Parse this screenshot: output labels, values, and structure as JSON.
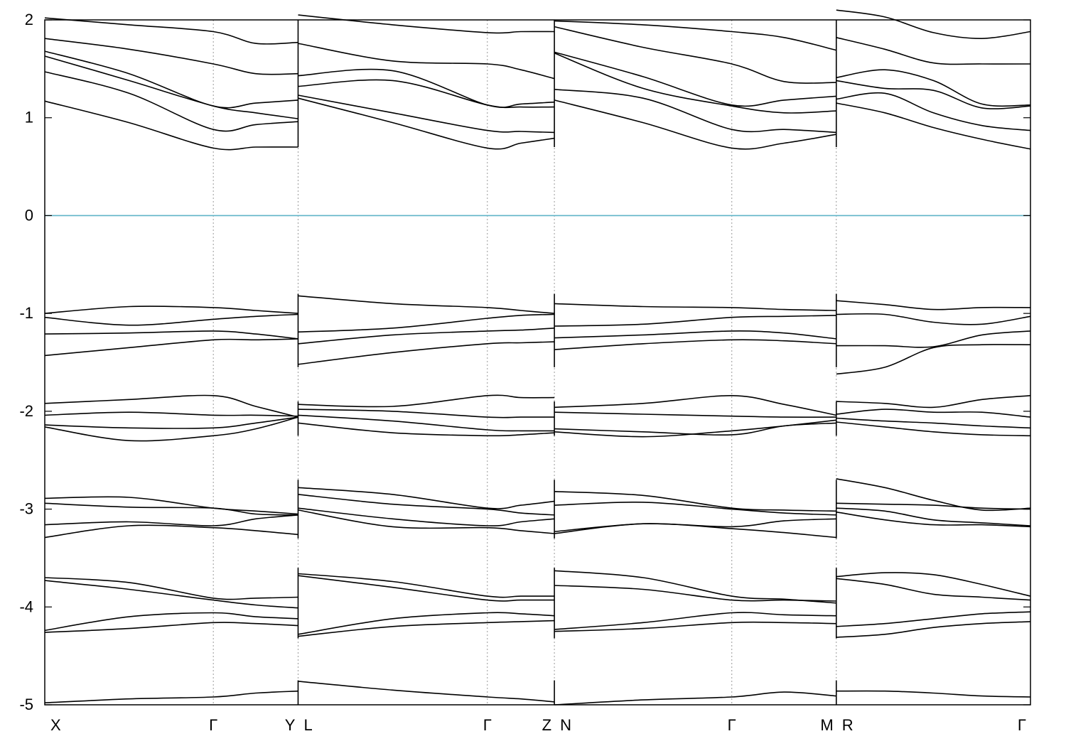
{
  "chart_data": {
    "type": "line",
    "title": "",
    "xlabel": "",
    "ylabel": "",
    "ylim": [
      -5,
      2
    ],
    "yticks": [
      "2",
      "1",
      "0",
      "-1",
      "-2",
      "-3",
      "-4",
      "-5"
    ],
    "yticks_values": [
      2,
      1,
      0,
      -1,
      -2,
      -3,
      -4,
      -5
    ],
    "grid": "vertical dotted lines at high-symmetry points",
    "zero_line_color": "#5fb4c8",
    "line_color": "#000000",
    "high_symmetry_points": [
      {
        "label": "X",
        "x": 0.0
      },
      {
        "label": "Γ",
        "x": 0.171
      },
      {
        "label": "Y",
        "x": 0.257
      },
      {
        "label": "L",
        "x": 0.257
      },
      {
        "label": "Γ",
        "x": 0.449
      },
      {
        "label": "Z",
        "x": 0.517
      },
      {
        "label": "N",
        "x": 0.517
      },
      {
        "label": "Γ",
        "x": 0.697
      },
      {
        "label": "M",
        "x": 0.803
      },
      {
        "label": "R",
        "x": 0.803
      },
      {
        "label": "Γ",
        "x": 1.0
      }
    ],
    "segments": [
      {
        "name": "X-Γ-Y",
        "x_start": 0.0,
        "x_end": 0.257,
        "mid": 0.171,
        "bands": [
          [
            2.02,
            1.95,
            1.88,
            1.76,
            1.77
          ],
          [
            1.81,
            1.7,
            1.55,
            1.45,
            1.45
          ],
          [
            1.68,
            1.45,
            1.12,
            1.15,
            1.18
          ],
          [
            1.63,
            1.38,
            1.12,
            1.05,
            0.99
          ],
          [
            1.47,
            1.25,
            0.88,
            0.93,
            0.96
          ],
          [
            1.17,
            0.95,
            0.69,
            0.7,
            0.7
          ],
          [
            -1.0,
            -0.93,
            -0.94,
            -0.97,
            -1.0
          ],
          [
            -1.04,
            -1.12,
            -1.06,
            -1.03,
            -1.01
          ],
          [
            -1.21,
            -1.2,
            -1.18,
            -1.21,
            -1.26
          ],
          [
            -1.43,
            -1.35,
            -1.27,
            -1.27,
            -1.26
          ],
          [
            -1.92,
            -1.88,
            -1.84,
            -1.95,
            -2.06
          ],
          [
            -2.04,
            -2.01,
            -2.04,
            -2.04,
            -2.05
          ],
          [
            -2.14,
            -2.17,
            -2.17,
            -2.12,
            -2.06
          ],
          [
            -2.16,
            -2.3,
            -2.25,
            -2.18,
            -2.06
          ],
          [
            -2.89,
            -2.88,
            -2.99,
            -3.02,
            -3.05
          ],
          [
            -2.94,
            -2.98,
            -2.99,
            -3.05,
            -3.06
          ],
          [
            -3.16,
            -3.13,
            -3.17,
            -3.1,
            -3.06
          ],
          [
            -3.29,
            -3.17,
            -3.19,
            -3.22,
            -3.26
          ],
          [
            -3.7,
            -3.75,
            -3.91,
            -3.91,
            -3.9
          ],
          [
            -3.73,
            -3.82,
            -3.93,
            -3.98,
            -4.01
          ],
          [
            -4.24,
            -4.1,
            -4.06,
            -4.1,
            -4.12
          ],
          [
            -4.26,
            -4.22,
            -4.16,
            -4.17,
            -4.19
          ],
          [
            -4.98,
            -4.94,
            -4.92,
            -4.88,
            -4.86
          ]
        ]
      },
      {
        "name": "L-Γ-Z",
        "x_start": 0.257,
        "x_end": 0.517,
        "mid": 0.449,
        "bands": [
          [
            2.05,
            1.95,
            1.87,
            1.88,
            1.88
          ],
          [
            1.76,
            1.58,
            1.55,
            1.49,
            1.4
          ],
          [
            1.43,
            1.48,
            1.13,
            1.14,
            1.16
          ],
          [
            1.32,
            1.38,
            1.13,
            1.11,
            1.11
          ],
          [
            1.23,
            1.05,
            0.87,
            0.86,
            0.85
          ],
          [
            1.2,
            0.95,
            0.69,
            0.74,
            0.79
          ],
          [
            -0.82,
            -0.9,
            -0.94,
            -0.97,
            -1.0
          ],
          [
            -1.19,
            -1.15,
            -1.05,
            -1.02,
            -1.01
          ],
          [
            -1.31,
            -1.22,
            -1.18,
            -1.17,
            -1.15
          ],
          [
            -1.52,
            -1.4,
            -1.31,
            -1.3,
            -1.29
          ],
          [
            -1.93,
            -1.95,
            -1.84,
            -1.86,
            -1.86
          ],
          [
            -1.98,
            -2.0,
            -2.06,
            -2.06,
            -2.06
          ],
          [
            -2.04,
            -2.1,
            -2.19,
            -2.2,
            -2.2
          ],
          [
            -2.12,
            -2.22,
            -2.25,
            -2.24,
            -2.22
          ],
          [
            -2.78,
            -2.85,
            -2.99,
            -2.96,
            -2.92
          ],
          [
            -2.85,
            -2.95,
            -3.0,
            -3.04,
            -3.06
          ],
          [
            -2.99,
            -3.1,
            -3.17,
            -3.13,
            -3.1
          ],
          [
            -3.01,
            -3.18,
            -3.19,
            -3.22,
            -3.25
          ],
          [
            -3.66,
            -3.74,
            -3.89,
            -3.89,
            -3.89
          ],
          [
            -3.68,
            -3.8,
            -3.93,
            -3.93,
            -3.93
          ],
          [
            -4.28,
            -4.12,
            -4.06,
            -4.07,
            -4.09
          ],
          [
            -4.3,
            -4.2,
            -4.16,
            -4.15,
            -4.14
          ],
          [
            -4.76,
            -4.85,
            -4.92,
            -4.94,
            -4.97
          ]
        ]
      },
      {
        "name": "N-Γ-M",
        "x_start": 0.517,
        "x_end": 0.803,
        "mid": 0.697,
        "bands": [
          [
            1.99,
            1.95,
            1.88,
            1.82,
            1.69
          ],
          [
            1.93,
            1.72,
            1.55,
            1.37,
            1.36
          ],
          [
            1.67,
            1.42,
            1.13,
            1.18,
            1.22
          ],
          [
            1.66,
            1.3,
            1.12,
            1.05,
            1.07
          ],
          [
            1.29,
            1.2,
            0.88,
            0.88,
            0.85
          ],
          [
            1.18,
            0.95,
            0.69,
            0.74,
            0.83
          ],
          [
            -0.9,
            -0.93,
            -0.94,
            -0.96,
            -0.97
          ],
          [
            -1.13,
            -1.11,
            -1.04,
            -1.03,
            -1.02
          ],
          [
            -1.25,
            -1.22,
            -1.18,
            -1.2,
            -1.26
          ],
          [
            -1.37,
            -1.31,
            -1.27,
            -1.28,
            -1.31
          ],
          [
            -1.96,
            -1.92,
            -1.84,
            -1.93,
            -2.04
          ],
          [
            -2.01,
            -2.03,
            -2.05,
            -2.06,
            -2.06
          ],
          [
            -2.18,
            -2.21,
            -2.24,
            -2.15,
            -2.12
          ],
          [
            -2.21,
            -2.26,
            -2.2,
            -2.15,
            -2.09
          ],
          [
            -2.82,
            -2.86,
            -2.99,
            -3.01,
            -3.02
          ],
          [
            -2.96,
            -2.93,
            -3.0,
            -3.04,
            -3.06
          ],
          [
            -3.23,
            -3.15,
            -3.18,
            -3.12,
            -3.1
          ],
          [
            -3.25,
            -3.15,
            -3.2,
            -3.24,
            -3.29
          ],
          [
            -3.63,
            -3.7,
            -3.89,
            -3.92,
            -3.96
          ],
          [
            -3.78,
            -3.82,
            -3.93,
            -3.93,
            -3.94
          ],
          [
            -4.23,
            -4.16,
            -4.06,
            -4.08,
            -4.09
          ],
          [
            -4.25,
            -4.22,
            -4.16,
            -4.16,
            -4.17
          ],
          [
            -5.0,
            -4.95,
            -4.92,
            -4.87,
            -4.91
          ]
        ]
      },
      {
        "name": "R-Γ",
        "x_start": 0.803,
        "x_end": 1.0,
        "mid": 1.0,
        "bands": [
          [
            2.1,
            2.03,
            1.87,
            1.81,
            1.88
          ],
          [
            1.82,
            1.7,
            1.56,
            1.55,
            1.55
          ],
          [
            1.41,
            1.49,
            1.38,
            1.14,
            1.13
          ],
          [
            1.38,
            1.3,
            1.28,
            1.1,
            1.12
          ],
          [
            1.19,
            1.25,
            1.05,
            0.92,
            0.87
          ],
          [
            1.15,
            1.05,
            0.9,
            0.78,
            0.68
          ],
          [
            -0.87,
            -0.91,
            -0.96,
            -0.94,
            -0.94
          ],
          [
            -1.01,
            -1.01,
            -1.09,
            -1.11,
            -1.03
          ],
          [
            -1.33,
            -1.33,
            -1.34,
            -1.22,
            -1.18
          ],
          [
            -1.62,
            -1.55,
            -1.35,
            -1.32,
            -1.32
          ],
          [
            -1.9,
            -1.92,
            -1.96,
            -1.88,
            -1.84
          ],
          [
            -2.03,
            -1.98,
            -2.01,
            -2.01,
            -2.06
          ],
          [
            -2.07,
            -2.1,
            -2.12,
            -2.15,
            -2.17
          ],
          [
            -2.11,
            -2.16,
            -2.21,
            -2.24,
            -2.25
          ],
          [
            -2.69,
            -2.78,
            -2.91,
            -3.01,
            -2.99
          ],
          [
            -2.94,
            -2.95,
            -2.96,
            -2.99,
            -3.0
          ],
          [
            -2.99,
            -3.02,
            -3.11,
            -3.14,
            -3.17
          ],
          [
            -3.03,
            -3.11,
            -3.16,
            -3.16,
            -3.18
          ],
          [
            -3.69,
            -3.65,
            -3.67,
            -3.77,
            -3.89
          ],
          [
            -3.71,
            -3.77,
            -3.87,
            -3.9,
            -3.93
          ],
          [
            -4.2,
            -4.17,
            -4.12,
            -4.07,
            -4.05
          ],
          [
            -4.31,
            -4.28,
            -4.21,
            -4.17,
            -4.15
          ],
          [
            -4.86,
            -4.86,
            -4.88,
            -4.91,
            -4.92
          ]
        ]
      }
    ]
  }
}
